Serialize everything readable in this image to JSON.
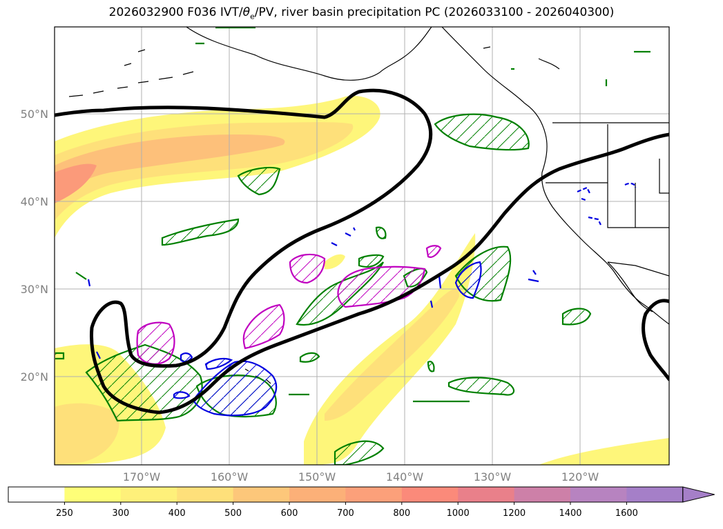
{
  "title": {
    "prefix": "2026032900 F036 IVT/",
    "theta": "θ",
    "theta_sub": "e",
    "suffix": "/PV, river basin precipitation PC (2026033100 - 2026040300)"
  },
  "axes": {
    "lat_labels": [
      "50°N",
      "40°N",
      "30°N",
      "20°N"
    ],
    "lon_labels": [
      "170°W",
      "160°W",
      "150°W",
      "140°W",
      "130°W",
      "120°W"
    ]
  },
  "colorbar": {
    "ticks": [
      "250",
      "300",
      "400",
      "500",
      "600",
      "700",
      "800",
      "1000",
      "1200",
      "1400",
      "1600"
    ],
    "colors": [
      "#ffffff",
      "#fefe78",
      "#fef07a",
      "#fee07a",
      "#fdc77a",
      "#fcb078",
      "#fca07a",
      "#fb8a7a",
      "#e9808a",
      "#cd80a8",
      "#b783c0",
      "#a57fc8"
    ],
    "extend": "max"
  },
  "legend_colors": {
    "ivt_low": "#fef67a",
    "ivt_mid": "#fdd07a",
    "ivt_high": "#fb9a7a",
    "pv_contour": "#000000",
    "precip_green": "#008000",
    "precip_magenta": "#c000c0",
    "precip_blue": "#0000e0"
  }
}
